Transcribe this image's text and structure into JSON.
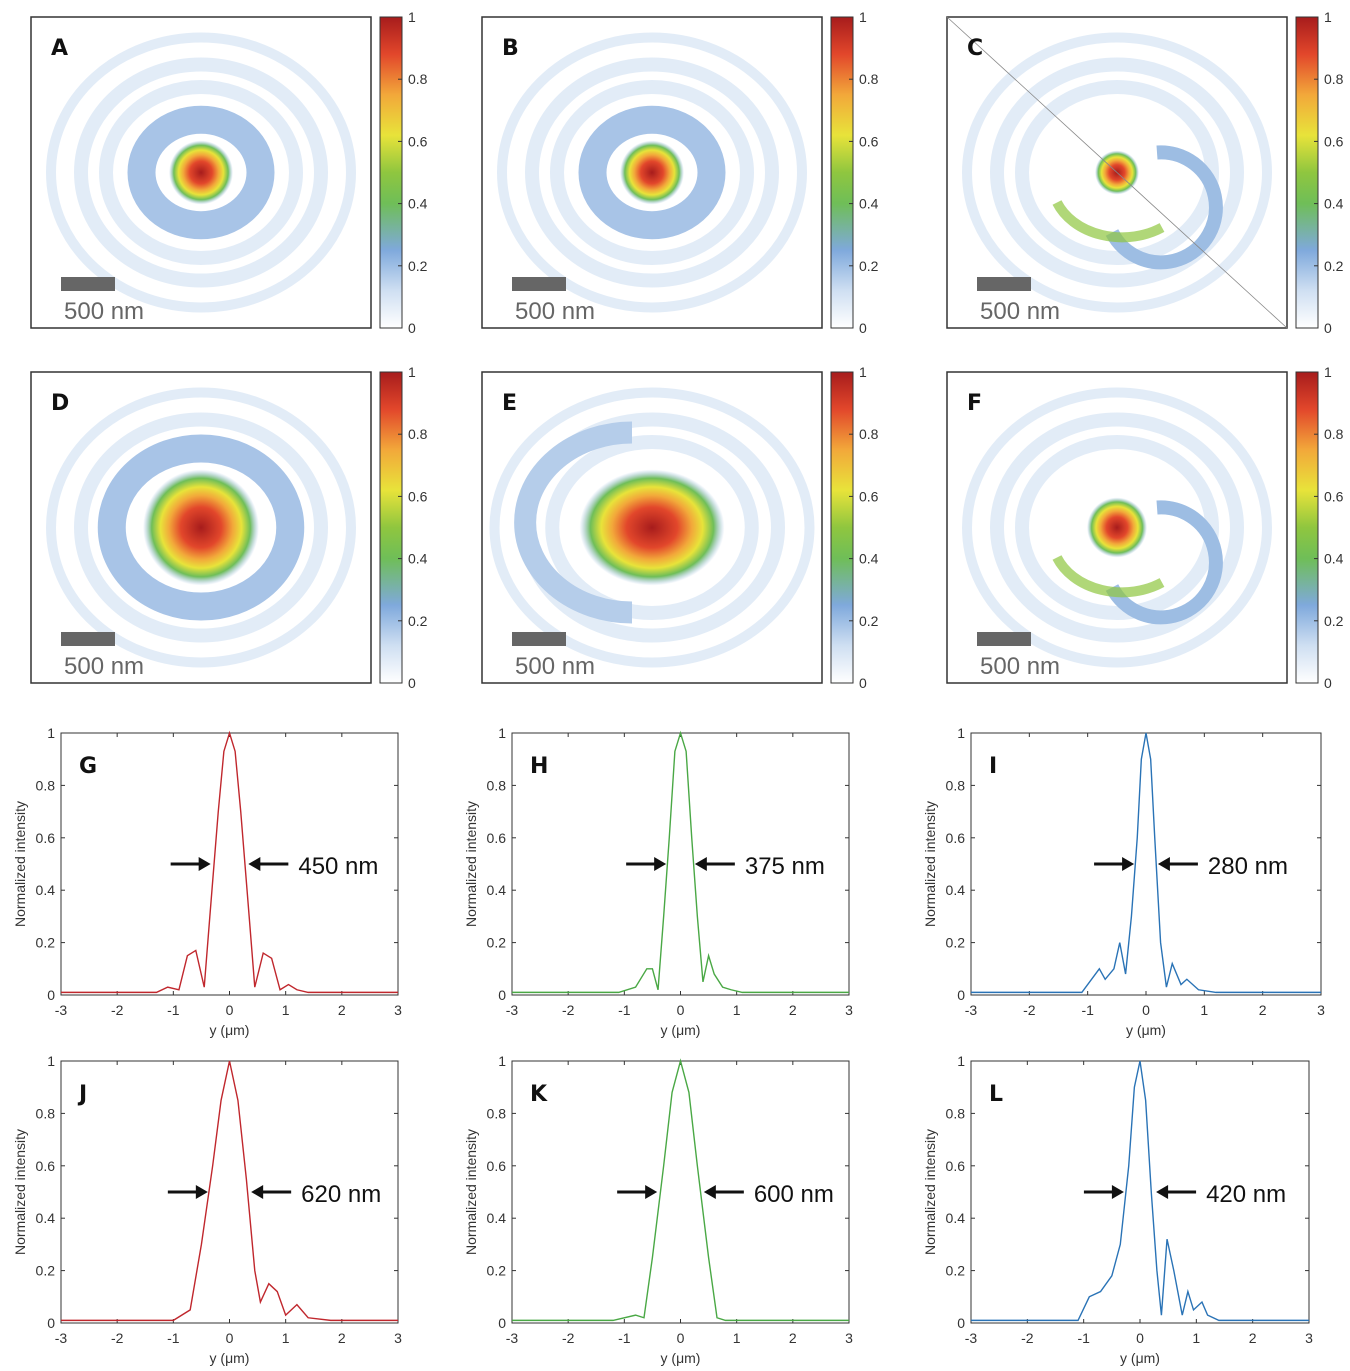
{
  "colorbar": {
    "ticks": [
      "0",
      "0.2",
      "0.4",
      "0.6",
      "0.8",
      "1"
    ],
    "colors": [
      "#ffffff",
      "#cfdff2",
      "#7fa9dc",
      "#6fbe58",
      "#8fc63f",
      "#e8e33a",
      "#f2a83a",
      "#e2472b",
      "#a71c1c"
    ]
  },
  "scale_bar_label": "500 nm",
  "maps": [
    {
      "label": "A",
      "ring": "round"
    },
    {
      "label": "B",
      "ring": "round"
    },
    {
      "label": "C",
      "ring": "spiral"
    },
    {
      "label": "D",
      "ring": "round"
    },
    {
      "label": "E",
      "ring": "eccentric"
    },
    {
      "label": "F",
      "ring": "spiral"
    }
  ],
  "chart_data": [
    {
      "label": "G",
      "type": "line",
      "color": "#c0272d",
      "fwhm_label": "450 nm",
      "xlabel": "y (μm)",
      "ylabel": "Normalized intensity",
      "xlim": [
        -3,
        3
      ],
      "ylim": [
        0,
        1
      ],
      "xticks": [
        "-3",
        "-2",
        "-1",
        "0",
        "1",
        "2",
        "3"
      ],
      "yticks": [
        "0",
        "0.2",
        "0.4",
        "0.6",
        "0.8",
        "1"
      ],
      "x": [
        -3,
        -1.3,
        -1.1,
        -0.9,
        -0.75,
        -0.6,
        -0.45,
        -0.35,
        -0.2,
        -0.1,
        0,
        0.1,
        0.2,
        0.35,
        0.45,
        0.6,
        0.75,
        0.9,
        1.05,
        1.2,
        1.4,
        3
      ],
      "y": [
        0.01,
        0.01,
        0.03,
        0.02,
        0.15,
        0.17,
        0.03,
        0.3,
        0.7,
        0.93,
        1.0,
        0.93,
        0.7,
        0.3,
        0.03,
        0.16,
        0.14,
        0.02,
        0.04,
        0.02,
        0.01,
        0.01
      ]
    },
    {
      "label": "H",
      "type": "line",
      "color": "#4aa845",
      "fwhm_label": "375 nm",
      "xlabel": "y (μm)",
      "ylabel": "Normalized intensity",
      "xlim": [
        -3,
        3
      ],
      "ylim": [
        0,
        1
      ],
      "xticks": [
        "-3",
        "-2",
        "-1",
        "0",
        "1",
        "2",
        "3"
      ],
      "yticks": [
        "0",
        "0.2",
        "0.4",
        "0.6",
        "0.8",
        "1"
      ],
      "x": [
        -3,
        -1.1,
        -0.8,
        -0.6,
        -0.5,
        -0.4,
        -0.3,
        -0.2,
        -0.1,
        0,
        0.1,
        0.2,
        0.3,
        0.4,
        0.5,
        0.6,
        0.75,
        0.9,
        1.1,
        3
      ],
      "y": [
        0.01,
        0.01,
        0.03,
        0.1,
        0.1,
        0.02,
        0.3,
        0.6,
        0.93,
        1.0,
        0.93,
        0.6,
        0.3,
        0.05,
        0.15,
        0.08,
        0.03,
        0.02,
        0.01,
        0.01
      ]
    },
    {
      "label": "I",
      "type": "line",
      "color": "#2a73b6",
      "fwhm_label": "280 nm",
      "xlabel": "y (μm)",
      "ylabel": "Normalized intensity",
      "xlim": [
        -3,
        3
      ],
      "ylim": [
        0,
        1
      ],
      "xticks": [
        "-3",
        "-2",
        "-1",
        "0",
        "1",
        "2",
        "3"
      ],
      "yticks": [
        "0",
        "0.2",
        "0.4",
        "0.6",
        "0.8",
        "1"
      ],
      "x": [
        -3,
        -1.1,
        -0.8,
        -0.7,
        -0.55,
        -0.45,
        -0.35,
        -0.25,
        -0.15,
        -0.08,
        0,
        0.08,
        0.15,
        0.25,
        0.35,
        0.45,
        0.6,
        0.7,
        0.9,
        1.2,
        3
      ],
      "y": [
        0.01,
        0.01,
        0.1,
        0.06,
        0.1,
        0.2,
        0.08,
        0.3,
        0.6,
        0.9,
        1.0,
        0.9,
        0.6,
        0.2,
        0.03,
        0.12,
        0.04,
        0.06,
        0.02,
        0.01,
        0.01
      ]
    },
    {
      "label": "J",
      "type": "line",
      "color": "#c0272d",
      "fwhm_label": "620 nm",
      "xlabel": "y (μm)",
      "ylabel": "Normalized intensity",
      "xlim": [
        -3,
        3
      ],
      "ylim": [
        0,
        1
      ],
      "xticks": [
        "-3",
        "-2",
        "-1",
        "0",
        "1",
        "2",
        "3"
      ],
      "yticks": [
        "0",
        "0.2",
        "0.4",
        "0.6",
        "0.8",
        "1"
      ],
      "x": [
        -3,
        -1.0,
        -0.7,
        -0.5,
        -0.3,
        -0.15,
        0,
        0.15,
        0.3,
        0.45,
        0.55,
        0.7,
        0.85,
        1.0,
        1.2,
        1.4,
        1.8,
        3
      ],
      "y": [
        0.01,
        0.01,
        0.05,
        0.3,
        0.6,
        0.85,
        1.0,
        0.85,
        0.55,
        0.2,
        0.08,
        0.15,
        0.12,
        0.03,
        0.07,
        0.02,
        0.01,
        0.01
      ]
    },
    {
      "label": "K",
      "type": "line",
      "color": "#4aa845",
      "fwhm_label": "600 nm",
      "xlabel": "y (μm)",
      "ylabel": "Normalized intensity",
      "xlim": [
        -3,
        3
      ],
      "ylim": [
        0,
        1
      ],
      "xticks": [
        "-3",
        "-2",
        "-1",
        "0",
        "1",
        "2",
        "3"
      ],
      "yticks": [
        "0",
        "0.2",
        "0.4",
        "0.6",
        "0.8",
        "1"
      ],
      "x": [
        -3,
        -1.2,
        -0.8,
        -0.65,
        -0.5,
        -0.3,
        -0.15,
        0,
        0.15,
        0.3,
        0.5,
        0.65,
        0.8,
        1.2,
        3
      ],
      "y": [
        0.01,
        0.01,
        0.03,
        0.02,
        0.25,
        0.6,
        0.88,
        1.0,
        0.88,
        0.6,
        0.25,
        0.02,
        0.01,
        0.01,
        0.01
      ]
    },
    {
      "label": "L",
      "type": "line",
      "color": "#2a73b6",
      "fwhm_label": "420 nm",
      "xlabel": "y (μm)",
      "ylabel": "Normalized intensity",
      "xlim": [
        -3,
        3
      ],
      "ylim": [
        0,
        1
      ],
      "xticks": [
        "-3",
        "-2",
        "-1",
        "0",
        "1",
        "2",
        "3"
      ],
      "yticks": [
        "0",
        "0.2",
        "0.4",
        "0.6",
        "0.8",
        "1"
      ],
      "x": [
        -3,
        -1.1,
        -0.9,
        -0.7,
        -0.5,
        -0.35,
        -0.2,
        -0.1,
        0,
        0.1,
        0.2,
        0.3,
        0.38,
        0.48,
        0.6,
        0.75,
        0.85,
        0.95,
        1.1,
        1.2,
        1.4,
        3
      ],
      "y": [
        0.01,
        0.01,
        0.1,
        0.12,
        0.18,
        0.3,
        0.6,
        0.9,
        1.0,
        0.85,
        0.5,
        0.2,
        0.03,
        0.32,
        0.2,
        0.03,
        0.12,
        0.05,
        0.08,
        0.03,
        0.01,
        0.01
      ]
    }
  ]
}
